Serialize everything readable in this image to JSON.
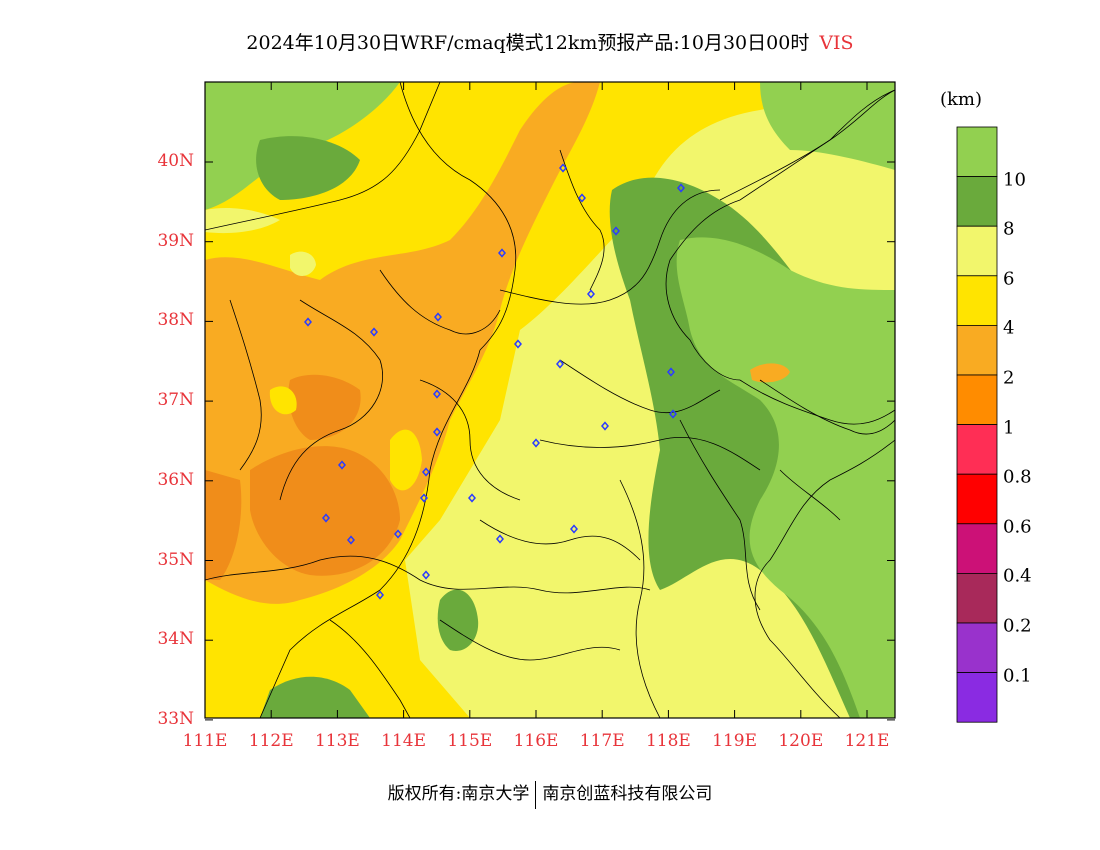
{
  "header": {
    "title": "2024年10月30日WRF/cmaq模式12km预报产品:10月30日00时",
    "variable": "VIS"
  },
  "axes": {
    "lat_labels": [
      "40N",
      "39N",
      "38N",
      "37N",
      "36N",
      "35N",
      "34N",
      "33N"
    ],
    "lon_labels": [
      "111E",
      "112E",
      "113E",
      "114E",
      "115E",
      "116E",
      "117E",
      "118E",
      "119E",
      "120E",
      "121E"
    ]
  },
  "legend": {
    "unit": "(km)",
    "bins": [
      {
        "label": "",
        "color": "#92d050"
      },
      {
        "label": "10",
        "color": "#6aaa3c"
      },
      {
        "label": "8",
        "color": "#f2f66c"
      },
      {
        "label": "6",
        "color": "#ffe400"
      },
      {
        "label": "4",
        "color": "#f9ab22"
      },
      {
        "label": "2",
        "color": "#ff8c00"
      },
      {
        "label": "1",
        "color": "#ff2e55"
      },
      {
        "label": "0.8",
        "color": "#ff0000"
      },
      {
        "label": "0.6",
        "color": "#cc1177"
      },
      {
        "label": "0.4",
        "color": "#a8295a"
      },
      {
        "label": "0.2",
        "color": "#9932cc"
      },
      {
        "label": "0.1",
        "color": "#8a2be2"
      }
    ]
  },
  "footer": {
    "copyright": "版权所有:南京大学",
    "company": "南京创蓝科技有限公司"
  }
}
